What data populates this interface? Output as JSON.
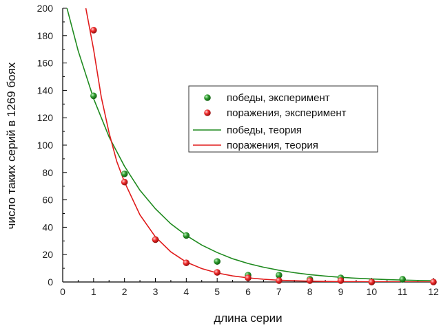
{
  "chart_data": {
    "type": "scatter",
    "xlabel": "длина серии",
    "ylabel": "число таких серий в 1269 боях",
    "xlim": [
      0,
      12
    ],
    "ylim": [
      0,
      200
    ],
    "x_ticks": [
      0,
      1,
      2,
      3,
      4,
      5,
      6,
      7,
      8,
      9,
      10,
      11,
      12
    ],
    "y_ticks": [
      0,
      20,
      40,
      60,
      80,
      100,
      120,
      140,
      160,
      180,
      200
    ],
    "grid": false,
    "legend_position": "center-right",
    "series": [
      {
        "name": "победы, эксперимент",
        "kind": "points",
        "color": "#1f8a1f",
        "x": [
          1,
          2,
          3,
          4,
          5,
          6,
          7,
          8,
          9,
          10,
          11
        ],
        "y": [
          136,
          79,
          31,
          34,
          15,
          5,
          5,
          2,
          3,
          0,
          2
        ]
      },
      {
        "name": "поражения, эксперимент",
        "kind": "points",
        "color": "#e01b1b",
        "x": [
          1,
          2,
          3,
          4,
          5,
          6,
          7,
          8,
          9,
          10,
          12
        ],
        "y": [
          184,
          73,
          31,
          14,
          7,
          3,
          1,
          1,
          1,
          0,
          0
        ]
      },
      {
        "name": "победы, теория",
        "kind": "curve",
        "color": "#1f8a1f",
        "x": [
          0,
          0.5,
          1,
          1.5,
          2,
          2.5,
          3,
          3.5,
          4,
          4.5,
          5,
          5.5,
          6,
          6.5,
          7,
          7.5,
          8,
          8.5,
          9,
          9.5,
          10,
          10.5,
          11,
          11.5,
          12
        ],
        "y": [
          212,
          169,
          134,
          106,
          84.5,
          67,
          53.5,
          42.5,
          34,
          27,
          21.5,
          17,
          13.5,
          10.8,
          8.6,
          6.8,
          5.4,
          4.3,
          3.4,
          2.7,
          2.2,
          1.7,
          1.4,
          1.1,
          0.9
        ]
      },
      {
        "name": "поражения, теория",
        "kind": "curve",
        "color": "#e01b1b",
        "x": [
          0.75,
          1,
          1.25,
          1.5,
          1.75,
          2,
          2.5,
          3,
          3.5,
          4,
          4.5,
          5,
          5.5,
          6,
          6.5,
          7,
          7.5,
          8,
          8.5,
          9,
          9.5,
          10,
          10.5,
          11,
          11.5,
          12
        ],
        "y": [
          200,
          170,
          135,
          109,
          88,
          73,
          49,
          33,
          22,
          14.5,
          9.8,
          6.6,
          4.4,
          3,
          2,
          1.3,
          0.9,
          0.6,
          0.4,
          0.27,
          0.18,
          0.12,
          0.08,
          0.05,
          0.03,
          0.02
        ]
      }
    ]
  }
}
